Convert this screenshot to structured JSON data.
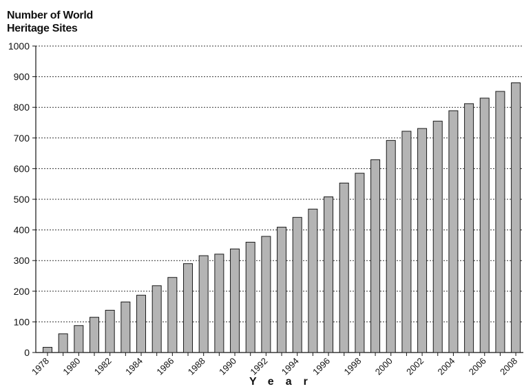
{
  "chart_data": {
    "type": "bar",
    "ylabel_lines": [
      "Number of World",
      "Heritage Sites"
    ],
    "xlabel": "Year",
    "ylim": [
      0,
      1000
    ],
    "yticks": [
      0,
      100,
      200,
      300,
      400,
      500,
      600,
      700,
      800,
      900,
      1000
    ],
    "grid": "horizontal-dotted",
    "bar_color": "#b4b4b4",
    "categories": [
      "1978",
      "1979",
      "1980",
      "1981",
      "1982",
      "1983",
      "1984",
      "1985",
      "1986",
      "1987",
      "1988",
      "1989",
      "1990",
      "1991",
      "1992",
      "1993",
      "1994",
      "1995",
      "1996",
      "1997",
      "1998",
      "1999",
      "2000",
      "2001",
      "2002",
      "2003",
      "2004",
      "2005",
      "2006",
      "2007",
      "2008"
    ],
    "tick_labels_shown": [
      "1978",
      "1980",
      "1982",
      "1984",
      "1986",
      "1988",
      "1990",
      "1992",
      "1994",
      "1996",
      "1998",
      "2000",
      "2002",
      "2004",
      "2006",
      "2008"
    ],
    "values": [
      17,
      61,
      88,
      115,
      138,
      165,
      187,
      218,
      245,
      290,
      316,
      321,
      338,
      360,
      379,
      409,
      441,
      468,
      508,
      553,
      585,
      629,
      692,
      722,
      731,
      755,
      789,
      812,
      830,
      852,
      880
    ]
  }
}
